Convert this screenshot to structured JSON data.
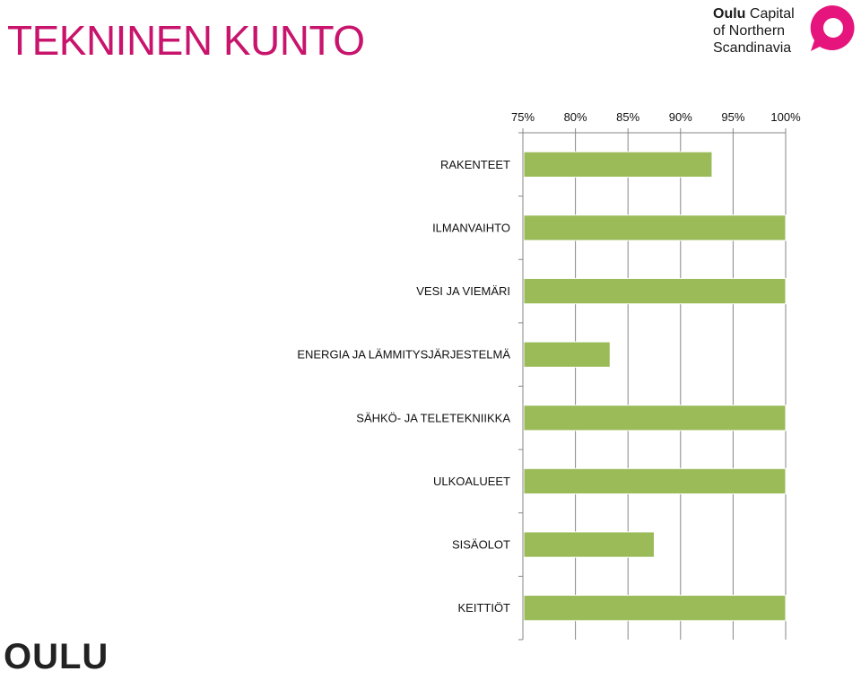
{
  "header": {
    "title": "TEKNINEN KUNTO"
  },
  "brand": {
    "line1_strong": "Oulu",
    "line1_rest": " Capital",
    "line2": "of Northern",
    "line3": "Scandinavia",
    "accent_color": "#e5157d"
  },
  "footer_logo": {
    "text": "OULU"
  },
  "chart_data": {
    "type": "bar",
    "orientation": "horizontal",
    "categories": [
      "RAKENTEET",
      "ILMANVAIHTO",
      "VESI JA VIEMÄRI",
      "ENERGIA JA LÄMMITYSJÄRJESTELMÄ",
      "SÄHKÖ- JA TELETEKNIIKKA",
      "ULKOALUEET",
      "SISÄOLOT",
      "KEITTIÖT"
    ],
    "values": [
      93,
      100,
      100,
      83.3,
      100,
      100,
      87.5,
      100
    ],
    "xlim": [
      75,
      100
    ],
    "ticks": [
      75,
      80,
      85,
      90,
      95,
      100
    ],
    "tick_labels": [
      "75%",
      "80%",
      "85%",
      "90%",
      "95%",
      "100%"
    ],
    "axis_position": "top",
    "grid": true,
    "bar_color": "#9bbb59",
    "bar_edge_color": "#ffffff",
    "title": "TEKNINEN KUNTO"
  }
}
